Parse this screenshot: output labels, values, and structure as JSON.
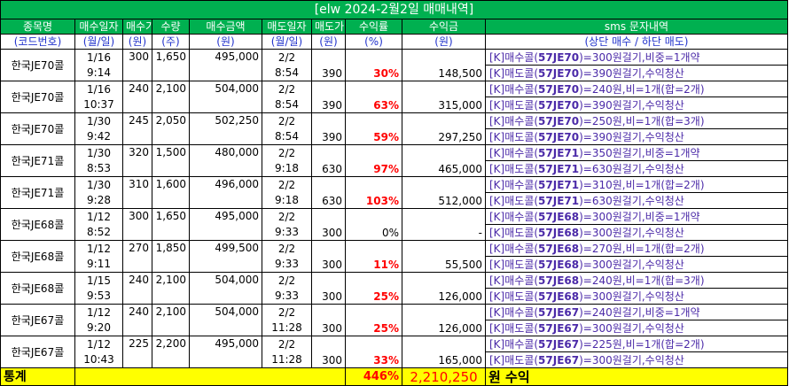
{
  "title": "[elw 2024-2월2일 매매내역]",
  "headers": {
    "row1": [
      "종목명",
      "매수일자",
      "매수가",
      "수량",
      "매수금액",
      "매도일자",
      "매도가",
      "수익률",
      "수익금",
      "sms 문자내역"
    ],
    "row2": [
      "(코드번호)",
      "(월/일)",
      "(원)",
      "(주)",
      "(원)",
      "(월/일)",
      "(원)",
      "(%)",
      "(원)",
      "(상단 매수 / 하단 매도)"
    ]
  },
  "trades": [
    {
      "name": "한국JE70콜",
      "buy_date": "1/16",
      "buy_time": "9:14",
      "buy_price": "300",
      "qty": "1,650",
      "buy_amount": "495,000",
      "sell_date": "2/2",
      "sell_time": "8:54",
      "sell_price": "390",
      "return_pct": "30%",
      "profit": "148,500",
      "sms_buy": {
        "pre": "[K]매수콜(",
        "code": "57JE70",
        "post": ")=300원걸기,비중=1개약"
      },
      "sms_sell": {
        "pre": "[K]매도콜(",
        "code": "57JE70",
        "post": ")=390원걸기,수익청산"
      }
    },
    {
      "name": "한국JE70콜",
      "buy_date": "1/16",
      "buy_time": "10:37",
      "buy_price": "240",
      "qty": "2,100",
      "buy_amount": "504,000",
      "sell_date": "2/2",
      "sell_time": "8:54",
      "sell_price": "390",
      "return_pct": "63%",
      "profit": "315,000",
      "sms_buy": {
        "pre": "[K]매수콜(",
        "code": "57JE70",
        "post": ")=240원,비=1개(합=2개)"
      },
      "sms_sell": {
        "pre": "[K]매도콜(",
        "code": "57JE70",
        "post": ")=390원걸기,수익청산"
      }
    },
    {
      "name": "한국JE70콜",
      "buy_date": "1/30",
      "buy_time": "9:42",
      "buy_price": "245",
      "qty": "2,050",
      "buy_amount": "502,250",
      "sell_date": "2/2",
      "sell_time": "8:54",
      "sell_price": "390",
      "return_pct": "59%",
      "profit": "297,250",
      "sms_buy": {
        "pre": "[K]매수콜(",
        "code": "57JE70",
        "post": ")=250원,비=1개(합=3개)"
      },
      "sms_sell": {
        "pre": "[K]매도콜(",
        "code": "57JE70",
        "post": ")=390원걸기,수익청산"
      }
    },
    {
      "name": "한국JE71콜",
      "buy_date": "1/30",
      "buy_time": "8:53",
      "buy_price": "320",
      "qty": "1,500",
      "buy_amount": "480,000",
      "sell_date": "2/2",
      "sell_time": "9:18",
      "sell_price": "630",
      "return_pct": "97%",
      "profit": "465,000",
      "sms_buy": {
        "pre": "[K]매수콜(",
        "code": "57JE71",
        "post": ")=350원걸기,비중=1개약"
      },
      "sms_sell": {
        "pre": "[K]매도콜(",
        "code": "57JE71",
        "post": ")=630원걸기,수익청산"
      }
    },
    {
      "name": "한국JE71콜",
      "buy_date": "1/30",
      "buy_time": "9:28",
      "buy_price": "310",
      "qty": "1,600",
      "buy_amount": "496,000",
      "sell_date": "2/2",
      "sell_time": "9:18",
      "sell_price": "630",
      "return_pct": "103%",
      "profit": "512,000",
      "sms_buy": {
        "pre": "[K]매수콜(",
        "code": "57JE71",
        "post": ")=310원,비=1개(합=2개)"
      },
      "sms_sell": {
        "pre": "[K]매도콜(",
        "code": "57JE71",
        "post": ")=630원걸기,수익청산"
      }
    },
    {
      "name": "한국JE68콜",
      "buy_date": "1/12",
      "buy_time": "8:52",
      "buy_price": "300",
      "qty": "1,650",
      "buy_amount": "495,000",
      "sell_date": "2/2",
      "sell_time": "9:33",
      "sell_price": "300",
      "return_pct": "0%",
      "profit": "-",
      "sms_buy": {
        "pre": "[K]매수콜(",
        "code": "57JE68",
        "post": ")=300원걸기,비중=1개약"
      },
      "sms_sell": {
        "pre": "[K]매도콜(",
        "code": "57JE68",
        "post": ")=300원걸기,수익청산"
      }
    },
    {
      "name": "한국JE68콜",
      "buy_date": "1/12",
      "buy_time": "9:11",
      "buy_price": "270",
      "qty": "1,850",
      "buy_amount": "499,500",
      "sell_date": "2/2",
      "sell_time": "9:33",
      "sell_price": "300",
      "return_pct": "11%",
      "profit": "55,500",
      "sms_buy": {
        "pre": "[K]매수콜(",
        "code": "57JE68",
        "post": ")=270원,비=1개(합=2개)"
      },
      "sms_sell": {
        "pre": "[K]매도콜(",
        "code": "57JE68",
        "post": ")=300원걸기,수익청산"
      }
    },
    {
      "name": "한국JE68콜",
      "buy_date": "1/15",
      "buy_time": "9:53",
      "buy_price": "240",
      "qty": "2,100",
      "buy_amount": "504,000",
      "sell_date": "2/2",
      "sell_time": "9:33",
      "sell_price": "300",
      "return_pct": "25%",
      "profit": "126,000",
      "sms_buy": {
        "pre": "[K]매수콜(",
        "code": "57JE68",
        "post": ")=240원,비=1개(합=3개)"
      },
      "sms_sell": {
        "pre": "[K]매도콜(",
        "code": "57JE68",
        "post": ")=300원걸기,수익청산"
      }
    },
    {
      "name": "한국JE67콜",
      "buy_date": "1/12",
      "buy_time": "9:20",
      "buy_price": "240",
      "qty": "2,100",
      "buy_amount": "504,000",
      "sell_date": "2/2",
      "sell_time": "11:28",
      "sell_price": "300",
      "return_pct": "25%",
      "profit": "126,000",
      "sms_buy": {
        "pre": "[K]매수콜(",
        "code": "57JE67",
        "post": ")=240원걸기,비중=1개약"
      },
      "sms_sell": {
        "pre": "[K]매도콜(",
        "code": "57JE67",
        "post": ")=300원걸기,수익청산"
      }
    },
    {
      "name": "한국JE67콜",
      "buy_date": "1/12",
      "buy_time": "10:43",
      "buy_price": "225",
      "qty": "2,200",
      "buy_amount": "495,000",
      "sell_date": "2/2",
      "sell_time": "11:28",
      "sell_price": "300",
      "return_pct": "33%",
      "profit": "165,000",
      "sms_buy": {
        "pre": "[K]매수콜(",
        "code": "57JE67",
        "post": ")=225원,비=1개(합=2개)"
      },
      "sms_sell": {
        "pre": "[K]매도콜(",
        "code": "57JE67",
        "post": ")=300원걸기,수익청산"
      }
    }
  ],
  "total": {
    "label": "통계",
    "return_pct": "446%",
    "profit": "2,210,250",
    "unit": "원 수익"
  },
  "colors": {
    "header_green": "#00b050",
    "total_yellow": "#ffff00",
    "return_red": "#ff0000",
    "sms_purple": "#4b2aa8",
    "header2_blue": "#2233cc"
  }
}
